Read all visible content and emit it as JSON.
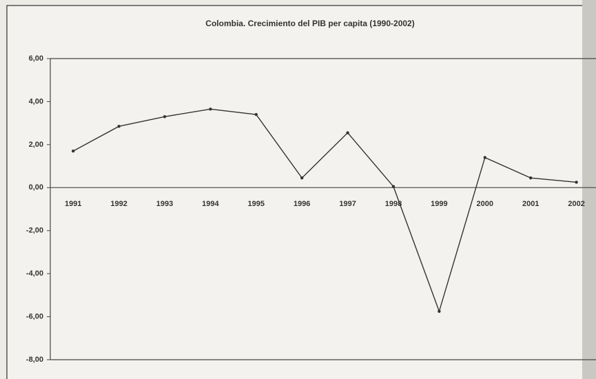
{
  "chart_data": {
    "type": "line",
    "title": "Colombia. Crecimiento del PIB per capita (1990-2002)",
    "categories": [
      "1991",
      "1992",
      "1993",
      "1994",
      "1995",
      "1996",
      "1997",
      "1998",
      "1999",
      "2000",
      "2001",
      "2002"
    ],
    "values": [
      1.7,
      2.85,
      3.3,
      3.65,
      3.4,
      0.45,
      2.55,
      0.05,
      -5.75,
      1.4,
      0.45,
      0.25
    ],
    "color": "#333333",
    "ylim": [
      -8,
      6
    ],
    "yticks": [
      {
        "value": -8,
        "label": "-8,00"
      },
      {
        "value": -6,
        "label": "-6,00"
      },
      {
        "value": -4,
        "label": "-4,00"
      },
      {
        "value": -2,
        "label": "-2,00"
      },
      {
        "value": 0,
        "label": "0,00"
      },
      {
        "value": 2,
        "label": "2,00"
      },
      {
        "value": 4,
        "label": "4,00"
      },
      {
        "value": 6,
        "label": "6,00"
      }
    ],
    "grid": false
  }
}
